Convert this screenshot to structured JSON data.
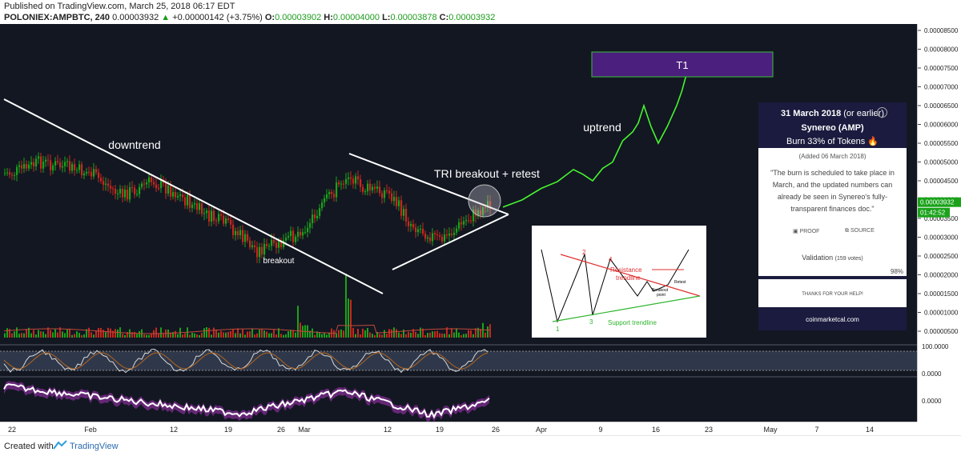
{
  "header": {
    "published": "Published on TradingView.com, March 25, 2018 06:17 EDT",
    "symbol": "POLONIEX:AMPBTC, 240",
    "price": "0.00003932",
    "change_arrow": "▲",
    "change": "+0.00000142 (+3.75%)",
    "o_label": "O:",
    "o_value": "0.00003902",
    "h_label": "H:",
    "h_value": "0.00004000",
    "l_label": "L:",
    "l_value": "0.00003878",
    "c_label": "C:",
    "c_value": "0.00003932"
  },
  "annotations": {
    "downtrend": "downtrend",
    "breakout": "breakout",
    "tri": "TRI breakout + retest",
    "uptrend": "uptrend",
    "t1": "T1"
  },
  "inset": {
    "resistance": "Resistance",
    "trendline": "trendline",
    "support": "Support trendline",
    "breakout": "Breakout",
    "point": "point",
    "retest": "Retest",
    "n1": "1",
    "n2": "2",
    "n3": "3",
    "n4": "4"
  },
  "card": {
    "date": "31 March 2018",
    "date_note": " (or earlier)",
    "name": "Synereo (AMP)",
    "event": "Burn 33% of Tokens 🔥",
    "added": "(Added 06 March 2018)",
    "quote": "\"The burn is scheduled to take place in March, and the updated numbers can already be seen in Synereo's fully-transparent finances doc.\"",
    "proof": "PROOF",
    "source": "SOURCE",
    "validation": "Validation",
    "votes": "(159 votes)",
    "pct": "98%",
    "thanks": "THANKS FOR YOUR HELP!",
    "site": "coinmarketcal.com"
  },
  "footer": {
    "created": "Created with",
    "brand": "TradingView"
  },
  "colors": {
    "background": "#131722",
    "bull": "#26a69a",
    "green_candle": "#1aa31a",
    "red_candle": "#c8281e",
    "projection": "#45f52f",
    "t1_box": "#4b1f7e",
    "oscillator_band": "#3a4458"
  },
  "chart_data": {
    "type": "candlestick",
    "price_axis": {
      "ticks": [
        "0.00008500",
        "0.00008000",
        "0.00007500",
        "0.00007000",
        "0.00006500",
        "0.00006000",
        "0.00005500",
        "0.00005000",
        "0.00004500",
        "0.00004000",
        "0.00003500",
        "0.00003000",
        "0.00002500",
        "0.00002000",
        "0.00001500",
        "0.00001000",
        "0.00000500"
      ],
      "last_price_label": "0.00003932",
      "countdown_label": "01:42:52"
    },
    "oscillator_axis": {
      "ticks": [
        "100.0000",
        "0.0000"
      ]
    },
    "momentum_axis": {
      "ticks": [
        "0.0000"
      ]
    },
    "x_axis": {
      "ticks": [
        "22",
        "Feb",
        "12",
        "19",
        "26",
        "Mar",
        "12",
        "19",
        "26",
        "Apr",
        "9",
        "16",
        "23",
        "May",
        "7",
        "14"
      ]
    },
    "price_path": {
      "dates": [
        "Jan 22",
        "Jan 26",
        "Feb 1",
        "Feb 5",
        "Feb 9",
        "Feb 12",
        "Feb 16",
        "Feb 19",
        "Feb 23",
        "Feb 26",
        "Mar 1",
        "Mar 3",
        "Mar 7",
        "Mar 9",
        "Mar 12",
        "Mar 15",
        "Mar 19",
        "Mar 23",
        "Mar 25"
      ],
      "close": [
        4.7e-05,
        5e-05,
        4.7e-05,
        4.1e-05,
        4.5e-05,
        4.2e-05,
        3.6e-05,
        3.3e-05,
        2.65e-05,
        2.8e-05,
        3.3e-05,
        3.8e-05,
        4.7e-05,
        4.3e-05,
        4.2e-05,
        3.4e-05,
        2.9e-05,
        3.6e-05,
        3.93e-05
      ]
    },
    "projection_path": {
      "dates": [
        "Mar 26",
        "Apr 1",
        "Apr 5",
        "Apr 8",
        "Apr 11",
        "Apr 14",
        "Apr 16",
        "Apr 18",
        "Apr 20",
        "Apr 22"
      ],
      "close": [
        3.8e-05,
        4.3e-05,
        4.8e-05,
        4.5e-05,
        5e-05,
        5.8e-05,
        6.5e-05,
        5.5e-05,
        6.5e-05,
        7.4e-05
      ]
    },
    "target": {
      "label": "T1",
      "low": 7.05e-05,
      "high": 7.85e-05
    }
  }
}
